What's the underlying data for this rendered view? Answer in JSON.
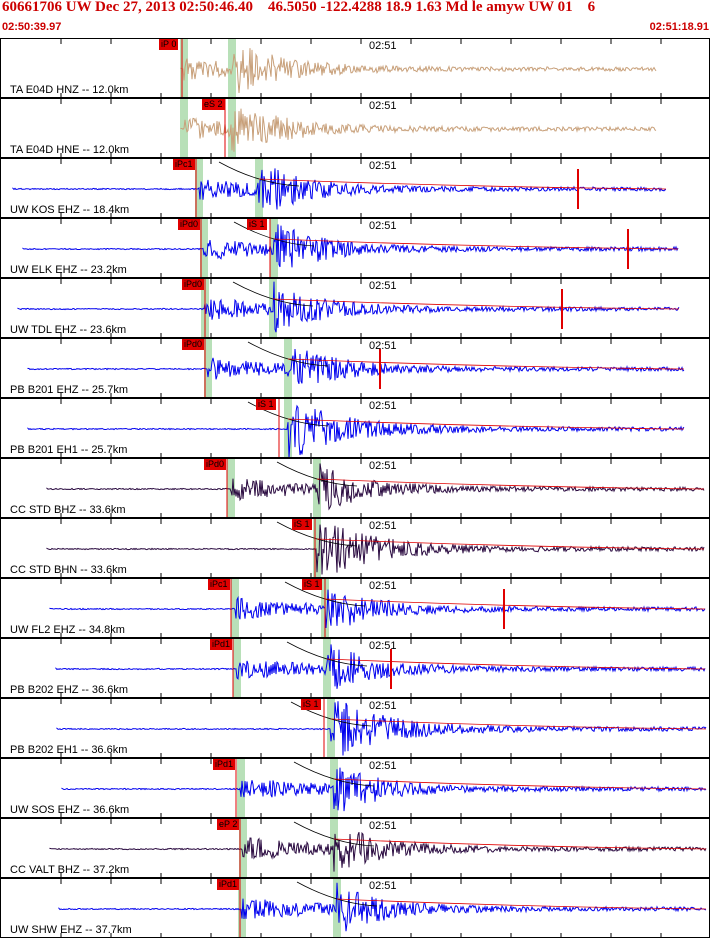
{
  "header": {
    "title": "60661706 UW Dec 27, 2013 02:50:46.40    46.5050 -122.4288 18.9 1.63 Md le amyw UW 01    6",
    "start_time": "02:50:39.97",
    "end_time": "02:51:18.91"
  },
  "colors": {
    "red": "#e00000",
    "blue": "#0000ee",
    "tan": "#c8a07a",
    "purple": "#2a0a40",
    "green": "#b8e0b8"
  },
  "panels": [
    {
      "label": "TA E04D HNZ -- 12.0km",
      "time_label": "02:51",
      "picks": [
        "iP 0"
      ],
      "color": "tan"
    },
    {
      "label": "TA E04D HNE -- 12.0km",
      "time_label": "02:51",
      "picks": [
        "eS 2"
      ],
      "color": "tan"
    },
    {
      "label": "UW KOS EHZ -- 18.4km",
      "time_label": "02:51",
      "picks": [
        "iPc1"
      ],
      "color": "blue"
    },
    {
      "label": "UW ELK EHZ -- 23.2km",
      "time_label": "02:51",
      "picks": [
        "iPd0",
        "iS 1"
      ],
      "color": "blue"
    },
    {
      "label": "UW TDL EHZ -- 23.6km",
      "time_label": "02:51",
      "picks": [
        "iPd0"
      ],
      "color": "blue"
    },
    {
      "label": "PB B201 EHZ -- 25.7km",
      "time_label": "02:51",
      "picks": [
        "iPd0"
      ],
      "color": "blue"
    },
    {
      "label": "PB B201 EH1 -- 25.7km",
      "time_label": "02:51",
      "picks": [
        "iS 1"
      ],
      "color": "blue"
    },
    {
      "label": "CC STD BHZ -- 33.6km",
      "time_label": "02:51",
      "picks": [
        "iPd0"
      ],
      "color": "purple"
    },
    {
      "label": "CC STD BHN -- 33.6km",
      "time_label": "02:51",
      "picks": [
        "iS 1"
      ],
      "color": "purple"
    },
    {
      "label": "UW FL2 EHZ -- 34.8km",
      "time_label": "02:51",
      "picks": [
        "iPc1",
        "iS 1"
      ],
      "color": "blue"
    },
    {
      "label": "PB B202 EHZ -- 36.6km",
      "time_label": "02:51",
      "picks": [
        "iPd1"
      ],
      "color": "blue"
    },
    {
      "label": "PB B202 EH1 -- 36.6km",
      "time_label": "02:51",
      "picks": [
        "iS 1"
      ],
      "color": "blue"
    },
    {
      "label": "UW SOS EHZ -- 36.6km",
      "time_label": "02:51",
      "picks": [
        "iPd1"
      ],
      "color": "blue"
    },
    {
      "label": "CC VALT BHZ -- 37.2km",
      "time_label": "02:51",
      "picks": [
        "eP 2"
      ],
      "color": "purple"
    },
    {
      "label": "UW SHW EHZ -- 37.7km",
      "time_label": "02:51",
      "picks": [
        "iPd1"
      ],
      "color": "blue"
    }
  ]
}
